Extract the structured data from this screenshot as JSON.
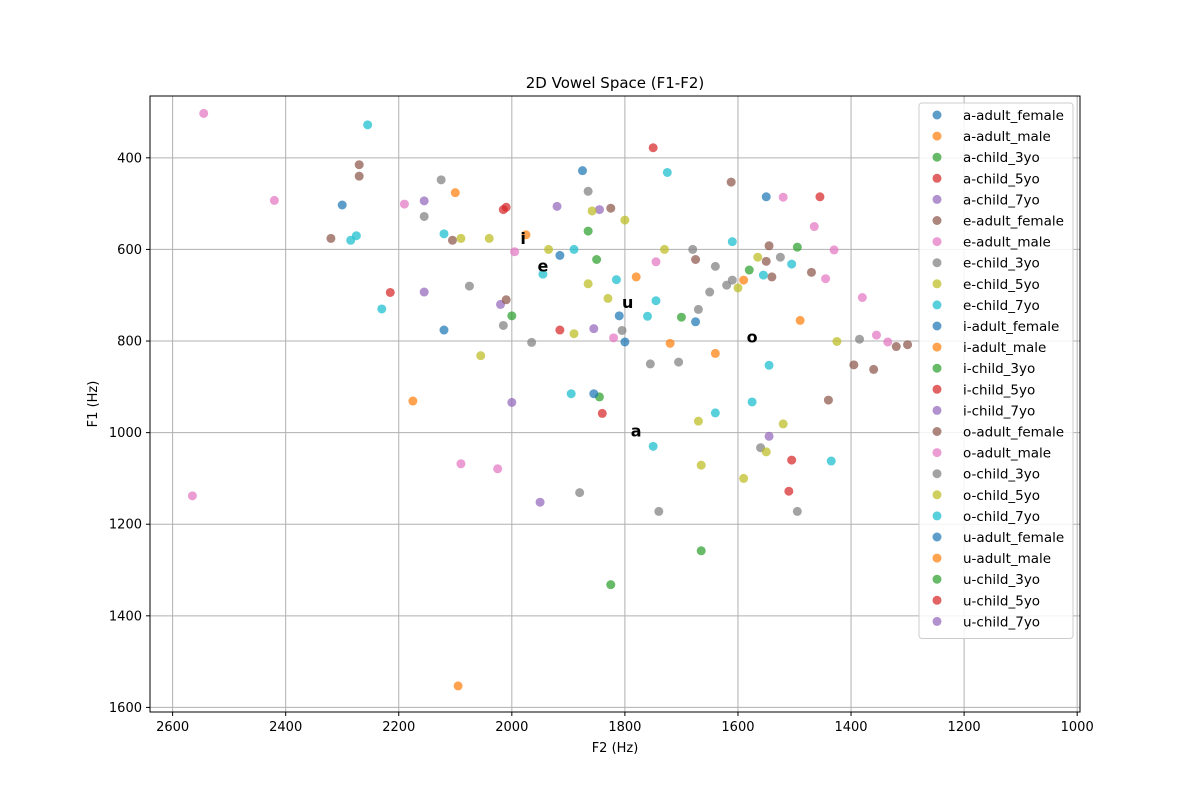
{
  "chart_data": {
    "type": "scatter",
    "title": "2D Vowel Space (F1-F2)",
    "xlabel": "F2 (Hz)",
    "ylabel": "F1 (Hz)",
    "xlim": [
      2640,
      995
    ],
    "ylim": [
      1610,
      265
    ],
    "x_inverted": true,
    "y_inverted": true,
    "grid": true,
    "legend_position": "top-right",
    "xticks": [
      2600,
      2400,
      2200,
      2000,
      1800,
      1600,
      1400,
      1200,
      1000
    ],
    "yticks": [
      400,
      600,
      800,
      1000,
      1200,
      1400,
      1600
    ],
    "palette": {
      "a": "#1f77b4",
      "b": "#ff7f0e",
      "c": "#2ca02c",
      "d": "#d62728",
      "e": "#9467bd",
      "f": "#8c564b",
      "g": "#e377c2",
      "h": "#7f7f7f",
      "i": "#bcbd22",
      "j": "#17becf"
    },
    "vowel_labels": [
      {
        "text": "i",
        "x": 1980,
        "y": 575
      },
      {
        "text": "e",
        "x": 1945,
        "y": 635
      },
      {
        "text": "u",
        "x": 1795,
        "y": 715
      },
      {
        "text": "o",
        "x": 1575,
        "y": 790
      },
      {
        "text": "a",
        "x": 1780,
        "y": 995
      }
    ],
    "series": [
      {
        "name": "a-adult_female",
        "color": "#1f77b4",
        "points": [
          [
            1875,
            428
          ],
          [
            1550,
            485
          ]
        ]
      },
      {
        "name": "a-adult_male",
        "color": "#ff7f0e",
        "points": [
          [
            2100,
            476
          ],
          [
            1975,
            568
          ],
          [
            1780,
            660
          ]
        ]
      },
      {
        "name": "a-child_3yo",
        "color": "#2ca02c",
        "points": [
          [
            1865,
            560
          ],
          [
            1850,
            622
          ],
          [
            1580,
            645
          ],
          [
            1495,
            595
          ]
        ]
      },
      {
        "name": "a-child_5yo",
        "color": "#d62728",
        "points": [
          [
            1750,
            378
          ],
          [
            2010,
            508
          ],
          [
            1455,
            485
          ]
        ]
      },
      {
        "name": "a-child_7yo",
        "color": "#9467bd",
        "points": [
          [
            1920,
            506
          ],
          [
            1845,
            513
          ]
        ]
      },
      {
        "name": "e-adult_female",
        "color": "#8c564b",
        "points": [
          [
            2270,
            415
          ],
          [
            2270,
            440
          ],
          [
            1825,
            510
          ],
          [
            1612,
            453
          ],
          [
            2320,
            576
          ],
          [
            2105,
            580
          ]
        ]
      },
      {
        "name": "e-adult_male",
        "color": "#e377c2",
        "points": [
          [
            2545,
            303
          ],
          [
            2420,
            493
          ],
          [
            2190,
            501
          ],
          [
            1995,
            605
          ],
          [
            1520,
            486
          ],
          [
            1465,
            550
          ]
        ]
      },
      {
        "name": "e-child_3yo",
        "color": "#7f7f7f",
        "points": [
          [
            2125,
            448
          ],
          [
            1865,
            473
          ],
          [
            2155,
            528
          ],
          [
            2075,
            680
          ],
          [
            1680,
            600
          ],
          [
            1650,
            693
          ]
        ]
      },
      {
        "name": "e-child_5yo",
        "color": "#bcbd22",
        "points": [
          [
            1858,
            516
          ],
          [
            1800,
            536
          ],
          [
            2090,
            576
          ],
          [
            2040,
            576
          ],
          [
            1935,
            600
          ],
          [
            1730,
            600
          ]
        ]
      },
      {
        "name": "e-child_7yo",
        "color": "#17becf",
        "points": [
          [
            2255,
            328
          ],
          [
            1725,
            432
          ],
          [
            2285,
            580
          ],
          [
            2275,
            570
          ],
          [
            2120,
            566
          ],
          [
            1890,
            600
          ]
        ]
      },
      {
        "name": "i-adult_female",
        "color": "#1f77b4",
        "points": [
          [
            2300,
            503
          ],
          [
            1915,
            613
          ],
          [
            2120,
            776
          ],
          [
            1810,
            745
          ],
          [
            1675,
            758
          ]
        ]
      },
      {
        "name": "i-adult_male",
        "color": "#ff7f0e",
        "points": [
          [
            1590,
            667
          ],
          [
            1490,
            755
          ],
          [
            1720,
            805
          ],
          [
            1640,
            827
          ],
          [
            2175,
            931
          ]
        ]
      },
      {
        "name": "i-child_3yo",
        "color": "#2ca02c",
        "points": [
          [
            2000,
            745
          ],
          [
            1700,
            748
          ],
          [
            1845,
            922
          ]
        ]
      },
      {
        "name": "i-child_5yo",
        "color": "#d62728",
        "points": [
          [
            2015,
            513
          ],
          [
            2215,
            694
          ],
          [
            1915,
            776
          ],
          [
            1840,
            958
          ]
        ]
      },
      {
        "name": "i-child_7yo",
        "color": "#9467bd",
        "points": [
          [
            2155,
            494
          ],
          [
            2155,
            693
          ],
          [
            2020,
            720
          ],
          [
            1855,
            773
          ],
          [
            2000,
            934
          ]
        ]
      },
      {
        "name": "o-adult_female",
        "color": "#8c564b",
        "points": [
          [
            1675,
            622
          ],
          [
            1545,
            592
          ],
          [
            1540,
            660
          ],
          [
            1470,
            650
          ],
          [
            1395,
            852
          ],
          [
            1360,
            862
          ],
          [
            1320,
            812
          ],
          [
            1300,
            808
          ],
          [
            1440,
            929
          ],
          [
            1550,
            626
          ],
          [
            2010,
            710
          ]
        ]
      },
      {
        "name": "o-adult_male",
        "color": "#e377c2",
        "points": [
          [
            1745,
            627
          ],
          [
            1445,
            664
          ],
          [
            1430,
            601
          ],
          [
            1380,
            705
          ],
          [
            1355,
            787
          ],
          [
            1335,
            802
          ],
          [
            1820,
            793
          ],
          [
            2090,
            1068
          ],
          [
            2025,
            1079
          ],
          [
            2565,
            1138
          ]
        ]
      },
      {
        "name": "o-child_3yo",
        "color": "#7f7f7f",
        "points": [
          [
            1640,
            637
          ],
          [
            1610,
            667
          ],
          [
            1620,
            678
          ],
          [
            1525,
            617
          ],
          [
            1670,
            731
          ],
          [
            1805,
            777
          ],
          [
            2015,
            766
          ],
          [
            1965,
            803
          ],
          [
            1755,
            850
          ],
          [
            1705,
            846
          ],
          [
            1385,
            796
          ],
          [
            1560,
            1033
          ],
          [
            1880,
            1131
          ],
          [
            1740,
            1172
          ],
          [
            1495,
            1172
          ]
        ]
      },
      {
        "name": "o-child_5yo",
        "color": "#bcbd22",
        "points": [
          [
            1865,
            675
          ],
          [
            1830,
            707
          ],
          [
            1890,
            784
          ],
          [
            2055,
            832
          ],
          [
            1565,
            617
          ],
          [
            1600,
            684
          ],
          [
            1425,
            801
          ],
          [
            1670,
            975
          ],
          [
            1520,
            981
          ],
          [
            1550,
            1042
          ],
          [
            1665,
            1071
          ],
          [
            1590,
            1100
          ]
        ]
      },
      {
        "name": "o-child_7yo",
        "color": "#17becf",
        "points": [
          [
            1945,
            654
          ],
          [
            2230,
            730
          ],
          [
            1760,
            746
          ],
          [
            1745,
            712
          ],
          [
            1815,
            666
          ],
          [
            1610,
            583
          ],
          [
            1505,
            632
          ],
          [
            1555,
            656
          ],
          [
            1545,
            853
          ],
          [
            1575,
            933
          ],
          [
            1640,
            957
          ],
          [
            1895,
            915
          ],
          [
            1750,
            1030
          ],
          [
            1435,
            1062
          ]
        ]
      },
      {
        "name": "u-adult_female",
        "color": "#1f77b4",
        "points": [
          [
            1800,
            802
          ],
          [
            1855,
            915
          ]
        ]
      },
      {
        "name": "u-adult_male",
        "color": "#ff7f0e",
        "points": [
          [
            2095,
            1553
          ]
        ]
      },
      {
        "name": "u-child_3yo",
        "color": "#2ca02c",
        "points": [
          [
            1665,
            1258
          ],
          [
            1825,
            1332
          ]
        ]
      },
      {
        "name": "u-child_5yo",
        "color": "#d62728",
        "points": [
          [
            1505,
            1060
          ],
          [
            1510,
            1128
          ]
        ]
      },
      {
        "name": "u-child_7yo",
        "color": "#9467bd",
        "points": [
          [
            1545,
            1008
          ],
          [
            1950,
            1152
          ]
        ]
      }
    ]
  }
}
